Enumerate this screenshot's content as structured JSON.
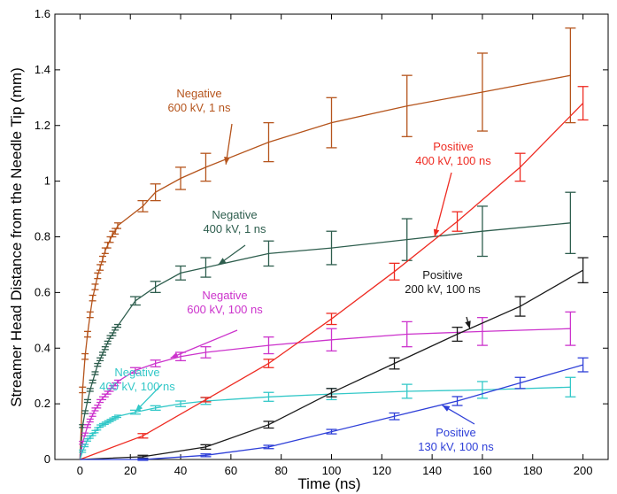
{
  "chart_data": {
    "type": "line",
    "title": "",
    "xlabel": "Time (ns)",
    "ylabel": "Streamer Head Distance from the Needle Tip (mm)",
    "xlim": [
      -10,
      210
    ],
    "ylim": [
      0,
      1.6
    ],
    "xticks": [
      "0",
      "20",
      "40",
      "60",
      "80",
      "100",
      "120",
      "140",
      "160",
      "180",
      "200"
    ],
    "yticks": [
      "0",
      "0.2",
      "0.4",
      "0.6",
      "0.8",
      "1",
      "1.2",
      "1.4",
      "1.6"
    ],
    "grid": false,
    "legend": "none",
    "series": [
      {
        "label_lines": [
          "Negative",
          "600 kV, 1 ns"
        ],
        "color": "#b5541c",
        "x": [
          0,
          1,
          2,
          3,
          4,
          5,
          6,
          7,
          8,
          9,
          10,
          11,
          12,
          13,
          14,
          15,
          25,
          30,
          40,
          50,
          75,
          100,
          130,
          160,
          195
        ],
        "y": [
          0.0,
          0.25,
          0.37,
          0.45,
          0.52,
          0.58,
          0.62,
          0.66,
          0.69,
          0.72,
          0.75,
          0.77,
          0.79,
          0.81,
          0.82,
          0.84,
          0.91,
          0.96,
          1.01,
          1.05,
          1.14,
          1.21,
          1.27,
          1.32,
          1.38
        ],
        "err": [
          0,
          0.01,
          0.01,
          0.01,
          0.01,
          0.01,
          0.01,
          0.01,
          0.01,
          0.01,
          0.01,
          0.01,
          0.01,
          0.01,
          0.01,
          0.01,
          0.02,
          0.03,
          0.04,
          0.05,
          0.07,
          0.09,
          0.11,
          0.14,
          0.17
        ]
      },
      {
        "label_lines": [
          "Negative",
          "400 kV, 1 ns"
        ],
        "color": "#2e5e4e",
        "x": [
          0,
          1,
          2,
          3,
          4,
          5,
          6,
          7,
          8,
          9,
          10,
          11,
          12,
          13,
          14,
          15,
          22,
          30,
          40,
          50,
          75,
          100,
          130,
          160,
          195
        ],
        "y": [
          0.0,
          0.12,
          0.17,
          0.21,
          0.25,
          0.28,
          0.31,
          0.34,
          0.36,
          0.38,
          0.4,
          0.42,
          0.44,
          0.45,
          0.47,
          0.48,
          0.57,
          0.62,
          0.67,
          0.69,
          0.74,
          0.76,
          0.79,
          0.82,
          0.85
        ],
        "err": [
          0,
          0.005,
          0.005,
          0.005,
          0.005,
          0.005,
          0.005,
          0.005,
          0.005,
          0.005,
          0.005,
          0.005,
          0.005,
          0.005,
          0.005,
          0.005,
          0.015,
          0.02,
          0.025,
          0.035,
          0.045,
          0.06,
          0.075,
          0.09,
          0.11
        ]
      },
      {
        "label_lines": [
          "Negative",
          "600 kV, 100 ns"
        ],
        "color": "#cc33cc",
        "x": [
          0,
          1,
          2,
          3,
          4,
          5,
          6,
          7,
          8,
          9,
          10,
          11,
          12,
          13,
          14,
          15,
          22,
          30,
          40,
          50,
          75,
          100,
          130,
          160,
          195
        ],
        "y": [
          0.0,
          0.06,
          0.09,
          0.12,
          0.14,
          0.16,
          0.18,
          0.19,
          0.21,
          0.22,
          0.23,
          0.24,
          0.25,
          0.26,
          0.27,
          0.28,
          0.32,
          0.345,
          0.37,
          0.385,
          0.41,
          0.43,
          0.45,
          0.46,
          0.47
        ],
        "err": [
          0,
          0.005,
          0.005,
          0.005,
          0.005,
          0.005,
          0.005,
          0.005,
          0.005,
          0.005,
          0.005,
          0.005,
          0.005,
          0.005,
          0.005,
          0.005,
          0.01,
          0.012,
          0.015,
          0.02,
          0.03,
          0.04,
          0.045,
          0.05,
          0.06
        ]
      },
      {
        "label_lines": [
          "Negative",
          "400 kV, 100 ns"
        ],
        "color": "#33c8c8",
        "x": [
          0,
          1,
          2,
          3,
          4,
          5,
          6,
          7,
          8,
          9,
          10,
          11,
          12,
          13,
          14,
          15,
          22,
          30,
          40,
          50,
          75,
          100,
          130,
          160,
          195
        ],
        "y": [
          0.0,
          0.03,
          0.05,
          0.07,
          0.08,
          0.09,
          0.1,
          0.11,
          0.12,
          0.125,
          0.13,
          0.135,
          0.14,
          0.145,
          0.15,
          0.155,
          0.17,
          0.185,
          0.2,
          0.21,
          0.225,
          0.235,
          0.245,
          0.25,
          0.26
        ],
        "err": [
          0,
          0.004,
          0.004,
          0.004,
          0.004,
          0.004,
          0.004,
          0.004,
          0.004,
          0.004,
          0.004,
          0.004,
          0.004,
          0.004,
          0.004,
          0.004,
          0.007,
          0.008,
          0.01,
          0.012,
          0.016,
          0.02,
          0.025,
          0.03,
          0.035
        ]
      },
      {
        "label_lines": [
          "Positive",
          "400 kV, 100 ns"
        ],
        "color": "#ee2b22",
        "x": [
          0,
          25,
          50,
          75,
          100,
          125,
          150,
          175,
          200
        ],
        "y": [
          0.0,
          0.085,
          0.215,
          0.345,
          0.505,
          0.675,
          0.855,
          1.05,
          1.28
        ],
        "err": [
          0,
          0.008,
          0.008,
          0.015,
          0.02,
          0.03,
          0.035,
          0.05,
          0.06
        ]
      },
      {
        "label_lines": [
          "Positive",
          "200 kV, 100 ns"
        ],
        "color": "#1a1a1a",
        "x": [
          0,
          25,
          50,
          75,
          100,
          125,
          150,
          175,
          200
        ],
        "y": [
          0.0,
          0.01,
          0.045,
          0.125,
          0.24,
          0.345,
          0.45,
          0.55,
          0.68
        ],
        "err": [
          0,
          0.005,
          0.008,
          0.012,
          0.015,
          0.02,
          0.025,
          0.035,
          0.045
        ]
      },
      {
        "label_lines": [
          "Positive",
          "130 kV, 100 ns"
        ],
        "color": "#2e3fd8",
        "x": [
          0,
          25,
          50,
          75,
          100,
          125,
          150,
          175,
          200
        ],
        "y": [
          0.0,
          0.0,
          0.015,
          0.045,
          0.1,
          0.155,
          0.21,
          0.275,
          0.34
        ],
        "err": [
          0,
          0.003,
          0.005,
          0.006,
          0.008,
          0.012,
          0.016,
          0.02,
          0.025
        ]
      }
    ]
  }
}
